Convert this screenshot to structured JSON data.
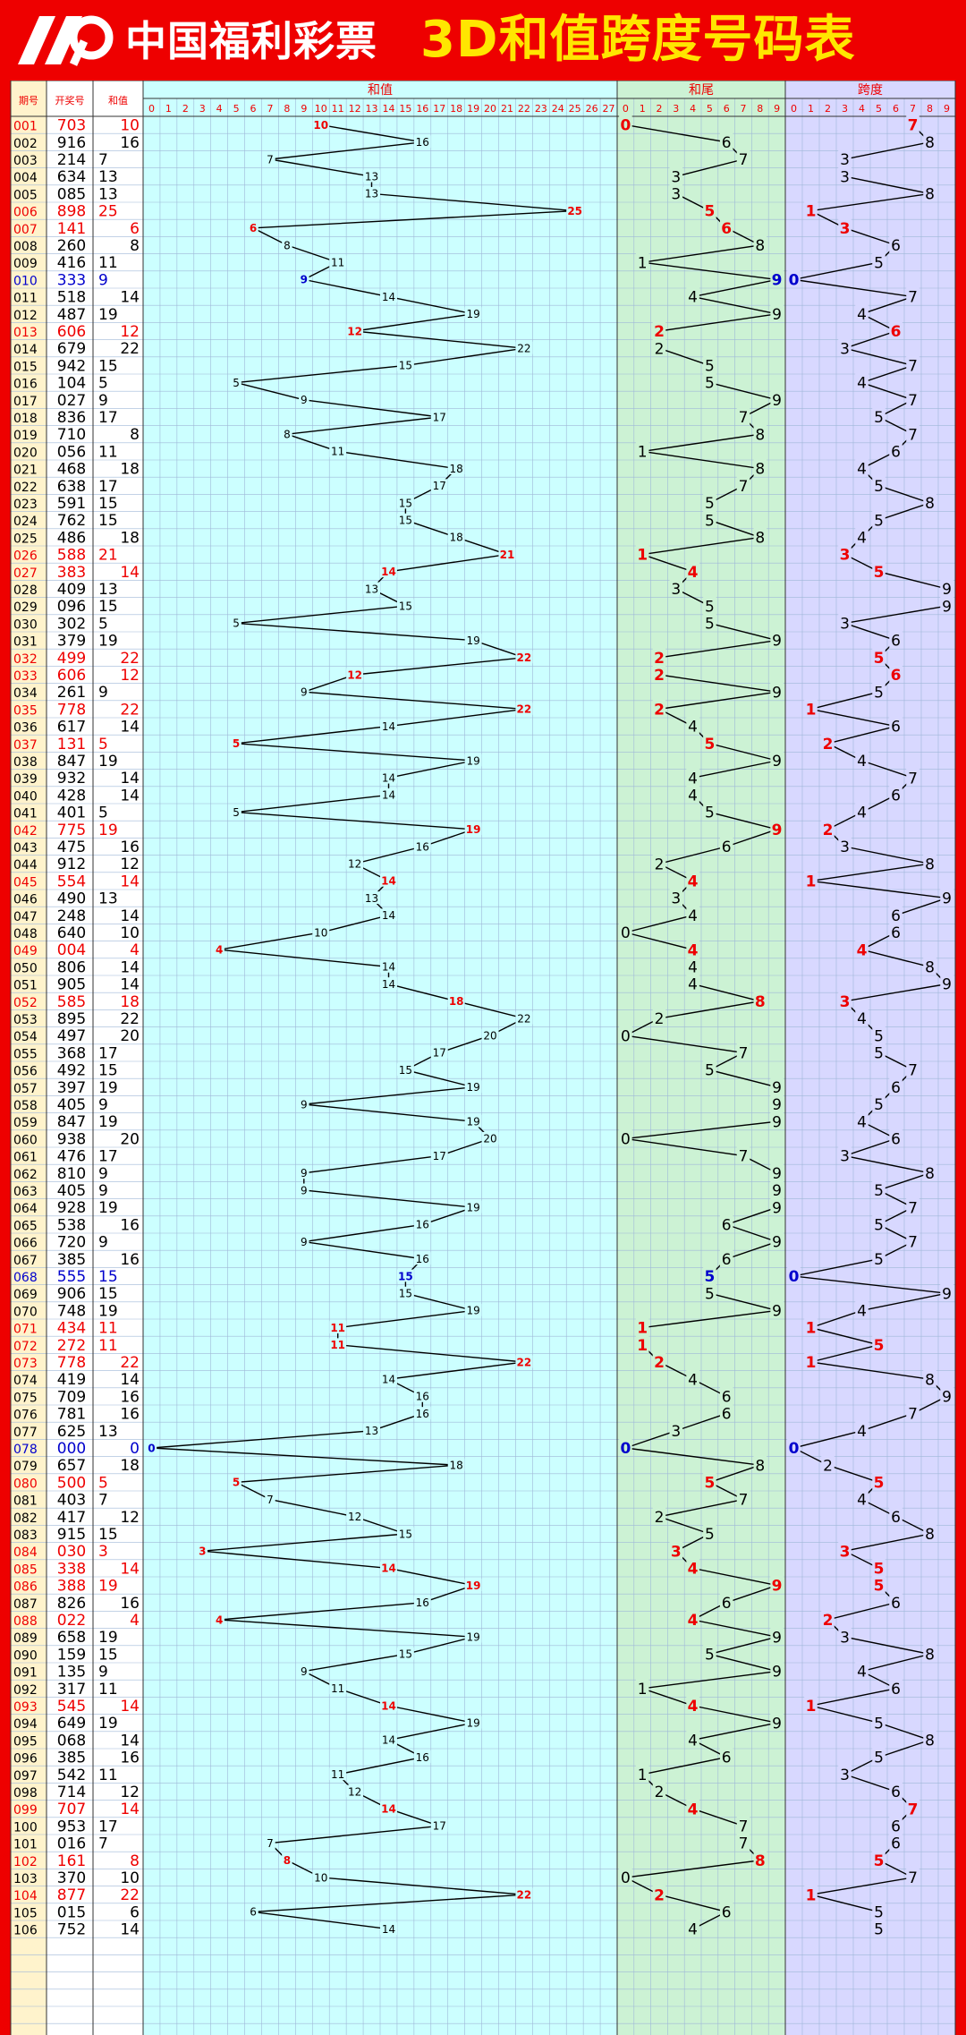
{
  "header": {
    "brand": "中国福利彩票",
    "title": "3D和值跨度号码表",
    "background": "#ee0000",
    "title_color": "#ffe600"
  },
  "columns": {
    "period": "期号",
    "draw": "开奖号",
    "sum": "和值",
    "sum_chart": "和值",
    "tail_chart": "和尾",
    "span_chart": "跨度"
  },
  "colors": {
    "frame_red": "#ee0000",
    "period_bg": "#fff3cc",
    "sum_bg": "#ccffff",
    "tail_bg": "#ccf2d4",
    "span_bg": "#d8d8ff",
    "highlight_red": "#ee0000",
    "highlight_blue": "#0000cc",
    "line": "#000000"
  },
  "chart_data": {
    "type": "table",
    "sum_axis": [
      0,
      27
    ],
    "tail_axis": [
      0,
      9
    ],
    "span_axis": [
      0,
      9
    ],
    "rows": [
      {
        "period": "001",
        "draw": "703",
        "sum": 10,
        "tail": 0,
        "span": 7,
        "hl": "red"
      },
      {
        "period": "002",
        "draw": "916",
        "sum": 16,
        "tail": 6,
        "span": 8,
        "hl": ""
      },
      {
        "period": "003",
        "draw": "214",
        "sum": 7,
        "tail": 7,
        "span": 3,
        "hl": ""
      },
      {
        "period": "004",
        "draw": "634",
        "sum": 13,
        "tail": 3,
        "span": 3,
        "hl": ""
      },
      {
        "period": "005",
        "draw": "085",
        "sum": 13,
        "tail": 3,
        "span": 8,
        "hl": ""
      },
      {
        "period": "006",
        "draw": "898",
        "sum": 25,
        "tail": 5,
        "span": 1,
        "hl": "red"
      },
      {
        "period": "007",
        "draw": "141",
        "sum": 6,
        "tail": 6,
        "span": 3,
        "hl": "red"
      },
      {
        "period": "008",
        "draw": "260",
        "sum": 8,
        "tail": 8,
        "span": 6,
        "hl": ""
      },
      {
        "period": "009",
        "draw": "416",
        "sum": 11,
        "tail": 1,
        "span": 5,
        "hl": ""
      },
      {
        "period": "010",
        "draw": "333",
        "sum": 9,
        "tail": 9,
        "span": 0,
        "hl": "blue"
      },
      {
        "period": "011",
        "draw": "518",
        "sum": 14,
        "tail": 4,
        "span": 7,
        "hl": ""
      },
      {
        "period": "012",
        "draw": "487",
        "sum": 19,
        "tail": 9,
        "span": 4,
        "hl": ""
      },
      {
        "period": "013",
        "draw": "606",
        "sum": 12,
        "tail": 2,
        "span": 6,
        "hl": "red"
      },
      {
        "period": "014",
        "draw": "679",
        "sum": 22,
        "tail": 2,
        "span": 3,
        "hl": ""
      },
      {
        "period": "015",
        "draw": "942",
        "sum": 15,
        "tail": 5,
        "span": 7,
        "hl": ""
      },
      {
        "period": "016",
        "draw": "104",
        "sum": 5,
        "tail": 5,
        "span": 4,
        "hl": ""
      },
      {
        "period": "017",
        "draw": "027",
        "sum": 9,
        "tail": 9,
        "span": 7,
        "hl": ""
      },
      {
        "period": "018",
        "draw": "836",
        "sum": 17,
        "tail": 7,
        "span": 5,
        "hl": ""
      },
      {
        "period": "019",
        "draw": "710",
        "sum": 8,
        "tail": 8,
        "span": 7,
        "hl": ""
      },
      {
        "period": "020",
        "draw": "056",
        "sum": 11,
        "tail": 1,
        "span": 6,
        "hl": ""
      },
      {
        "period": "021",
        "draw": "468",
        "sum": 18,
        "tail": 8,
        "span": 4,
        "hl": ""
      },
      {
        "period": "022",
        "draw": "638",
        "sum": 17,
        "tail": 7,
        "span": 5,
        "hl": ""
      },
      {
        "period": "023",
        "draw": "591",
        "sum": 15,
        "tail": 5,
        "span": 8,
        "hl": ""
      },
      {
        "period": "024",
        "draw": "762",
        "sum": 15,
        "tail": 5,
        "span": 5,
        "hl": ""
      },
      {
        "period": "025",
        "draw": "486",
        "sum": 18,
        "tail": 8,
        "span": 4,
        "hl": ""
      },
      {
        "period": "026",
        "draw": "588",
        "sum": 21,
        "tail": 1,
        "span": 3,
        "hl": "red"
      },
      {
        "period": "027",
        "draw": "383",
        "sum": 14,
        "tail": 4,
        "span": 5,
        "hl": "red"
      },
      {
        "period": "028",
        "draw": "409",
        "sum": 13,
        "tail": 3,
        "span": 9,
        "hl": ""
      },
      {
        "period": "029",
        "draw": "096",
        "sum": 15,
        "tail": 5,
        "span": 9,
        "hl": ""
      },
      {
        "period": "030",
        "draw": "302",
        "sum": 5,
        "tail": 5,
        "span": 3,
        "hl": ""
      },
      {
        "period": "031",
        "draw": "379",
        "sum": 19,
        "tail": 9,
        "span": 6,
        "hl": ""
      },
      {
        "period": "032",
        "draw": "499",
        "sum": 22,
        "tail": 2,
        "span": 5,
        "hl": "red"
      },
      {
        "period": "033",
        "draw": "606",
        "sum": 12,
        "tail": 2,
        "span": 6,
        "hl": "red"
      },
      {
        "period": "034",
        "draw": "261",
        "sum": 9,
        "tail": 9,
        "span": 5,
        "hl": ""
      },
      {
        "period": "035",
        "draw": "778",
        "sum": 22,
        "tail": 2,
        "span": 1,
        "hl": "red"
      },
      {
        "period": "036",
        "draw": "617",
        "sum": 14,
        "tail": 4,
        "span": 6,
        "hl": ""
      },
      {
        "period": "037",
        "draw": "131",
        "sum": 5,
        "tail": 5,
        "span": 2,
        "hl": "red"
      },
      {
        "period": "038",
        "draw": "847",
        "sum": 19,
        "tail": 9,
        "span": 4,
        "hl": ""
      },
      {
        "period": "039",
        "draw": "932",
        "sum": 14,
        "tail": 4,
        "span": 7,
        "hl": ""
      },
      {
        "period": "040",
        "draw": "428",
        "sum": 14,
        "tail": 4,
        "span": 6,
        "hl": ""
      },
      {
        "period": "041",
        "draw": "401",
        "sum": 5,
        "tail": 5,
        "span": 4,
        "hl": ""
      },
      {
        "period": "042",
        "draw": "775",
        "sum": 19,
        "tail": 9,
        "span": 2,
        "hl": "red"
      },
      {
        "period": "043",
        "draw": "475",
        "sum": 16,
        "tail": 6,
        "span": 3,
        "hl": ""
      },
      {
        "period": "044",
        "draw": "912",
        "sum": 12,
        "tail": 2,
        "span": 8,
        "hl": ""
      },
      {
        "period": "045",
        "draw": "554",
        "sum": 14,
        "tail": 4,
        "span": 1,
        "hl": "red"
      },
      {
        "period": "046",
        "draw": "490",
        "sum": 13,
        "tail": 3,
        "span": 9,
        "hl": ""
      },
      {
        "period": "047",
        "draw": "248",
        "sum": 14,
        "tail": 4,
        "span": 6,
        "hl": ""
      },
      {
        "period": "048",
        "draw": "640",
        "sum": 10,
        "tail": 0,
        "span": 6,
        "hl": ""
      },
      {
        "period": "049",
        "draw": "004",
        "sum": 4,
        "tail": 4,
        "span": 4,
        "hl": "red"
      },
      {
        "period": "050",
        "draw": "806",
        "sum": 14,
        "tail": 4,
        "span": 8,
        "hl": ""
      },
      {
        "period": "051",
        "draw": "905",
        "sum": 14,
        "tail": 4,
        "span": 9,
        "hl": ""
      },
      {
        "period": "052",
        "draw": "585",
        "sum": 18,
        "tail": 8,
        "span": 3,
        "hl": "red"
      },
      {
        "period": "053",
        "draw": "895",
        "sum": 22,
        "tail": 2,
        "span": 4,
        "hl": ""
      },
      {
        "period": "054",
        "draw": "497",
        "sum": 20,
        "tail": 0,
        "span": 5,
        "hl": ""
      },
      {
        "period": "055",
        "draw": "368",
        "sum": 17,
        "tail": 7,
        "span": 5,
        "hl": ""
      },
      {
        "period": "056",
        "draw": "492",
        "sum": 15,
        "tail": 5,
        "span": 7,
        "hl": ""
      },
      {
        "period": "057",
        "draw": "397",
        "sum": 19,
        "tail": 9,
        "span": 6,
        "hl": ""
      },
      {
        "period": "058",
        "draw": "405",
        "sum": 9,
        "tail": 9,
        "span": 5,
        "hl": ""
      },
      {
        "period": "059",
        "draw": "847",
        "sum": 19,
        "tail": 9,
        "span": 4,
        "hl": ""
      },
      {
        "period": "060",
        "draw": "938",
        "sum": 20,
        "tail": 0,
        "span": 6,
        "hl": ""
      },
      {
        "period": "061",
        "draw": "476",
        "sum": 17,
        "tail": 7,
        "span": 3,
        "hl": ""
      },
      {
        "period": "062",
        "draw": "810",
        "sum": 9,
        "tail": 9,
        "span": 8,
        "hl": ""
      },
      {
        "period": "063",
        "draw": "405",
        "sum": 9,
        "tail": 9,
        "span": 5,
        "hl": ""
      },
      {
        "period": "064",
        "draw": "928",
        "sum": 19,
        "tail": 9,
        "span": 7,
        "hl": ""
      },
      {
        "period": "065",
        "draw": "538",
        "sum": 16,
        "tail": 6,
        "span": 5,
        "hl": ""
      },
      {
        "period": "066",
        "draw": "720",
        "sum": 9,
        "tail": 9,
        "span": 7,
        "hl": ""
      },
      {
        "period": "067",
        "draw": "385",
        "sum": 16,
        "tail": 6,
        "span": 5,
        "hl": ""
      },
      {
        "period": "068",
        "draw": "555",
        "sum": 15,
        "tail": 5,
        "span": 0,
        "hl": "blue"
      },
      {
        "period": "069",
        "draw": "906",
        "sum": 15,
        "tail": 5,
        "span": 9,
        "hl": ""
      },
      {
        "period": "070",
        "draw": "748",
        "sum": 19,
        "tail": 9,
        "span": 4,
        "hl": ""
      },
      {
        "period": "071",
        "draw": "434",
        "sum": 11,
        "tail": 1,
        "span": 1,
        "hl": "red"
      },
      {
        "period": "072",
        "draw": "272",
        "sum": 11,
        "tail": 1,
        "span": 5,
        "hl": "red"
      },
      {
        "period": "073",
        "draw": "778",
        "sum": 22,
        "tail": 2,
        "span": 1,
        "hl": "red"
      },
      {
        "period": "074",
        "draw": "419",
        "sum": 14,
        "tail": 4,
        "span": 8,
        "hl": ""
      },
      {
        "period": "075",
        "draw": "709",
        "sum": 16,
        "tail": 6,
        "span": 9,
        "hl": ""
      },
      {
        "period": "076",
        "draw": "781",
        "sum": 16,
        "tail": 6,
        "span": 7,
        "hl": ""
      },
      {
        "period": "077",
        "draw": "625",
        "sum": 13,
        "tail": 3,
        "span": 4,
        "hl": ""
      },
      {
        "period": "078",
        "draw": "000",
        "sum": 0,
        "tail": 0,
        "span": 0,
        "hl": "blue"
      },
      {
        "period": "079",
        "draw": "657",
        "sum": 18,
        "tail": 8,
        "span": 2,
        "hl": ""
      },
      {
        "period": "080",
        "draw": "500",
        "sum": 5,
        "tail": 5,
        "span": 5,
        "hl": "red"
      },
      {
        "period": "081",
        "draw": "403",
        "sum": 7,
        "tail": 7,
        "span": 4,
        "hl": ""
      },
      {
        "period": "082",
        "draw": "417",
        "sum": 12,
        "tail": 2,
        "span": 6,
        "hl": ""
      },
      {
        "period": "083",
        "draw": "915",
        "sum": 15,
        "tail": 5,
        "span": 8,
        "hl": ""
      },
      {
        "period": "084",
        "draw": "030",
        "sum": 3,
        "tail": 3,
        "span": 3,
        "hl": "red"
      },
      {
        "period": "085",
        "draw": "338",
        "sum": 14,
        "tail": 4,
        "span": 5,
        "hl": "red"
      },
      {
        "period": "086",
        "draw": "388",
        "sum": 19,
        "tail": 9,
        "span": 5,
        "hl": "red"
      },
      {
        "period": "087",
        "draw": "826",
        "sum": 16,
        "tail": 6,
        "span": 6,
        "hl": ""
      },
      {
        "period": "088",
        "draw": "022",
        "sum": 4,
        "tail": 4,
        "span": 2,
        "hl": "red"
      },
      {
        "period": "089",
        "draw": "658",
        "sum": 19,
        "tail": 9,
        "span": 3,
        "hl": ""
      },
      {
        "period": "090",
        "draw": "159",
        "sum": 15,
        "tail": 5,
        "span": 8,
        "hl": ""
      },
      {
        "period": "091",
        "draw": "135",
        "sum": 9,
        "tail": 9,
        "span": 4,
        "hl": ""
      },
      {
        "period": "092",
        "draw": "317",
        "sum": 11,
        "tail": 1,
        "span": 6,
        "hl": ""
      },
      {
        "period": "093",
        "draw": "545",
        "sum": 14,
        "tail": 4,
        "span": 1,
        "hl": "red"
      },
      {
        "period": "094",
        "draw": "649",
        "sum": 19,
        "tail": 9,
        "span": 5,
        "hl": ""
      },
      {
        "period": "095",
        "draw": "068",
        "sum": 14,
        "tail": 4,
        "span": 8,
        "hl": ""
      },
      {
        "period": "096",
        "draw": "385",
        "sum": 16,
        "tail": 6,
        "span": 5,
        "hl": ""
      },
      {
        "period": "097",
        "draw": "542",
        "sum": 11,
        "tail": 1,
        "span": 3,
        "hl": ""
      },
      {
        "period": "098",
        "draw": "714",
        "sum": 12,
        "tail": 2,
        "span": 6,
        "hl": ""
      },
      {
        "period": "099",
        "draw": "707",
        "sum": 14,
        "tail": 4,
        "span": 7,
        "hl": "red"
      },
      {
        "period": "100",
        "draw": "953",
        "sum": 17,
        "tail": 7,
        "span": 6,
        "hl": ""
      },
      {
        "period": "101",
        "draw": "016",
        "sum": 7,
        "tail": 7,
        "span": 6,
        "hl": ""
      },
      {
        "period": "102",
        "draw": "161",
        "sum": 8,
        "tail": 8,
        "span": 5,
        "hl": "red"
      },
      {
        "period": "103",
        "draw": "370",
        "sum": 10,
        "tail": 0,
        "span": 7,
        "hl": ""
      },
      {
        "period": "104",
        "draw": "877",
        "sum": 22,
        "tail": 2,
        "span": 1,
        "hl": "red"
      },
      {
        "period": "105",
        "draw": "015",
        "sum": 6,
        "tail": 6,
        "span": 5,
        "hl": ""
      },
      {
        "period": "106",
        "draw": "752",
        "sum": 14,
        "tail": 4,
        "span": 5,
        "hl": ""
      }
    ]
  }
}
